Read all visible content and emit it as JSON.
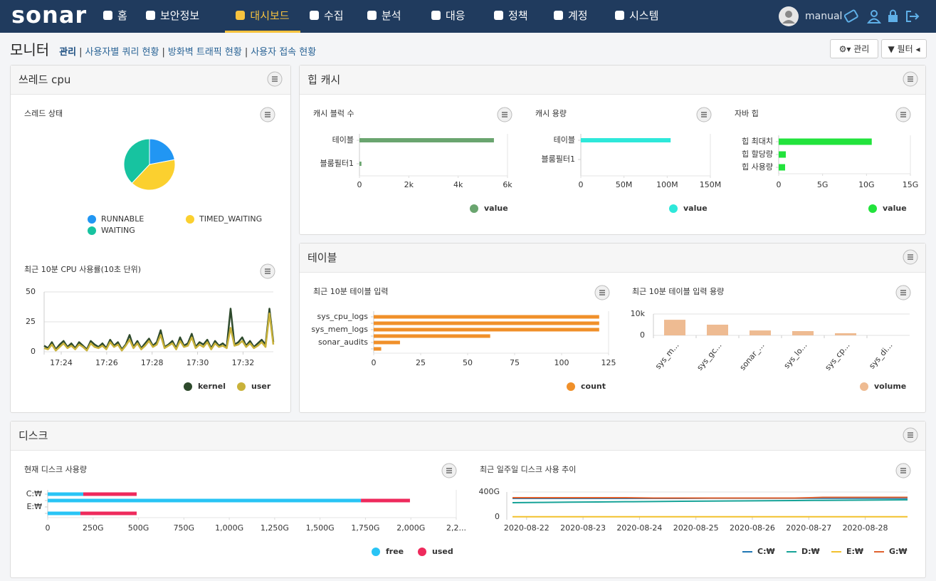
{
  "nav": {
    "logo": "sonar",
    "menu": [
      "홈",
      "보안정보",
      "대시보드",
      "수집",
      "분석",
      "대응",
      "정책",
      "계정",
      "시스템"
    ],
    "active": 2,
    "user": "manual"
  },
  "header": {
    "title": "모니터",
    "links": [
      "관리",
      "사용자별 쿼리 현황",
      "방화벽 트래픽 현황",
      "사용자 접속 현황"
    ],
    "buttons": [
      "관리",
      "필터"
    ]
  },
  "panels": [
    {
      "title": "쓰레드 cpu",
      "charts": [
        {
          "title": "스레드 상태",
          "type": "pie",
          "categories": [
            "RUNNABLE",
            "TIMED_WAITING",
            "WAITING"
          ],
          "values": [
            22,
            40,
            38
          ],
          "colors": [
            "#2196f3",
            "#fbd02f",
            "#17c3a0"
          ]
        },
        {
          "title": "최근 10분 CPU 사용률(10초 단위)",
          "type": "line",
          "xlim": [
            0,
            59
          ],
          "xticks": [
            {
              "value": 4.4,
              "label": "17:24"
            },
            {
              "value": 16.1,
              "label": "17:26"
            },
            {
              "value": 27.8,
              "label": "17:28"
            },
            {
              "value": 39.5,
              "label": "17:30"
            },
            {
              "value": 51.2,
              "label": "17:32"
            }
          ],
          "ylim": [
            0,
            50
          ],
          "yticks": [
            0,
            25,
            50
          ],
          "grid": true,
          "series": [
            {
              "name": "kernel",
              "color": "#2e4a2c",
              "values": [
                5,
                3,
                8,
                2,
                6,
                9,
                4,
                7,
                3,
                8,
                5,
                2,
                9,
                6,
                4,
                7,
                3,
                10,
                5,
                8,
                2,
                6,
                14,
                4,
                9,
                3,
                7,
                11,
                5,
                8,
                18,
                4,
                6,
                9,
                3,
                12,
                5,
                7,
                15,
                4,
                8,
                6,
                10,
                3,
                9,
                5,
                7,
                4,
                36,
                6,
                8,
                12,
                5,
                9,
                4,
                7,
                10,
                6,
                36,
                8
              ]
            },
            {
              "name": "user",
              "color": "#c9b23a",
              "values": [
                3,
                2,
                6,
                1,
                4,
                7,
                3,
                5,
                2,
                6,
                4,
                1,
                7,
                4,
                3,
                5,
                2,
                8,
                4,
                6,
                1,
                5,
                10,
                3,
                7,
                2,
                5,
                9,
                4,
                6,
                14,
                3,
                5,
                7,
                2,
                9,
                4,
                5,
                12,
                3,
                6,
                4,
                8,
                2,
                7,
                4,
                5,
                3,
                20,
                5,
                6,
                9,
                4,
                7,
                3,
                5,
                8,
                4,
                32,
                6
              ]
            }
          ]
        }
      ]
    },
    {
      "title": "힙 캐시",
      "charts": [
        {
          "title": "캐시 블럭 수",
          "type": "hbar",
          "categories": [
            "테이블",
            "블룸필터1"
          ],
          "xlim": [
            0,
            6000
          ],
          "xticks": [
            0,
            {
              "value": 2000,
              "label": "2k"
            },
            {
              "value": 4000,
              "label": "4k"
            },
            {
              "value": 6000,
              "label": "6k"
            }
          ],
          "series": [
            {
              "name": "value",
              "color": "#6aa56f",
              "values": [
                5450,
                80
              ]
            }
          ]
        },
        {
          "title": "캐시 용량",
          "type": "hbar",
          "categories": [
            "테이블",
            "블룸필터1"
          ],
          "xlim": [
            0,
            150
          ],
          "xticks": [
            0,
            {
              "value": 50,
              "label": "50M"
            },
            {
              "value": 100,
              "label": "100M"
            },
            {
              "value": 150,
              "label": "150M"
            }
          ],
          "series": [
            {
              "name": "value",
              "color": "#2ee8da",
              "values": [
                104,
                0
              ]
            }
          ]
        },
        {
          "title": "자바 힙",
          "type": "hbar",
          "categories": [
            "힙 최대치",
            "힙 할당량",
            "힙 사용량"
          ],
          "xlim": [
            0,
            15
          ],
          "xticks": [
            0,
            {
              "value": 5,
              "label": "5G"
            },
            {
              "value": 10,
              "label": "10G"
            },
            {
              "value": 15,
              "label": "15G"
            }
          ],
          "series": [
            {
              "name": "value",
              "color": "#22e33c",
              "values": [
                10.6,
                0.81,
                0.73
              ]
            }
          ]
        }
      ]
    },
    {
      "title": "테이블",
      "charts": [
        {
          "title": "최근 10분 테이블 입력",
          "type": "hbar",
          "categories": [
            "sys_cpu_logs",
            null,
            "sys_mem_logs",
            null,
            "sonar_audits",
            null
          ],
          "xlim": [
            0,
            125
          ],
          "xticks": [
            0,
            25,
            50,
            75,
            100,
            125
          ],
          "series": [
            {
              "name": "count",
              "color": "#f0902a",
              "values": [
                120,
                120,
                120,
                62,
                14,
                4
              ]
            }
          ]
        },
        {
          "title": "최근 10분 테이블 입력 용량",
          "type": "vbar",
          "categories": [
            "sys_m...",
            "sys_gc...",
            "sonar_...",
            "sys_lo...",
            "sys_cp...",
            "sys_di..."
          ],
          "ylim": [
            0,
            10000
          ],
          "yticks": [
            0,
            {
              "value": 10000,
              "label": "10k"
            }
          ],
          "grid": true,
          "series": [
            {
              "name": "volume",
              "color": "#eebb92",
              "values": [
                7300,
                5000,
                2300,
                2000,
                1000,
                0
              ]
            }
          ]
        }
      ]
    },
    {
      "title": "디스크",
      "charts": [
        {
          "title": "현재 디스크 사용량",
          "type": "hbar",
          "categories": [
            "C:₩",
            null,
            "E:₩",
            null
          ],
          "xlim": [
            0,
            2250
          ],
          "xticks": [
            0,
            {
              "value": 250,
              "label": "250G"
            },
            {
              "value": 500,
              "label": "500G"
            },
            {
              "value": 750,
              "label": "750G"
            },
            {
              "value": 1000,
              "label": "1,000G"
            },
            {
              "value": 1250,
              "label": "1,250G"
            },
            {
              "value": 1500,
              "label": "1,500G"
            },
            {
              "value": 1750,
              "label": "1,750G"
            },
            {
              "value": 2000,
              "label": "2,000G"
            },
            {
              "value": 2250,
              "label": "2,2..."
            }
          ],
          "series": [
            {
              "name": "free",
              "color": "#29c4f5",
              "values": [
                196,
                1725,
                0,
                180
              ]
            },
            {
              "name": "used",
              "color": "#ee2a5c",
              "values": [
                294,
                270,
                0,
                310
              ]
            }
          ]
        },
        {
          "title": "최근 일주일 디스크 사용 추이",
          "type": "line",
          "legend_marker": "line",
          "xlim": [
            0,
            14
          ],
          "xticks": [
            {
              "value": 0.5,
              "label": "2020-08-22"
            },
            {
              "value": 2.5,
              "label": "2020-08-23"
            },
            {
              "value": 4.5,
              "label": "2020-08-24"
            },
            {
              "value": 6.5,
              "label": "2020-08-25"
            },
            {
              "value": 8.5,
              "label": "2020-08-26"
            },
            {
              "value": 10.5,
              "label": "2020-08-27"
            },
            {
              "value": 12.5,
              "label": "2020-08-28"
            }
          ],
          "ylim": [
            0,
            400
          ],
          "yticks": [
            0,
            {
              "value": 400,
              "label": "400G"
            }
          ],
          "grid": true,
          "series": [
            {
              "name": "C:₩",
              "color": "#1f77b4",
              "values": [
                297,
                297,
                297,
                297,
                297,
                297,
                297,
                300,
                300,
                300,
                300,
                300,
                300,
                300,
                300
              ]
            },
            {
              "name": "D:₩",
              "color": "#17a398",
              "values": [
                229,
                233,
                237,
                240,
                244,
                247,
                251,
                254,
                257,
                260,
                263,
                266,
                269,
                271,
                274
              ]
            },
            {
              "name": "E:₩",
              "color": "#f2c12e",
              "values": [
                3,
                3,
                3,
                3,
                3,
                3,
                3,
                3,
                3,
                3,
                3,
                3,
                3,
                3,
                3
              ]
            },
            {
              "name": "G:₩",
              "color": "#e0622f",
              "values": [
                309,
                309,
                309,
                309,
                309,
                303,
                303,
                303,
                303,
                303,
                303,
                314,
                314,
                314,
                314
              ]
            }
          ]
        }
      ]
    }
  ]
}
